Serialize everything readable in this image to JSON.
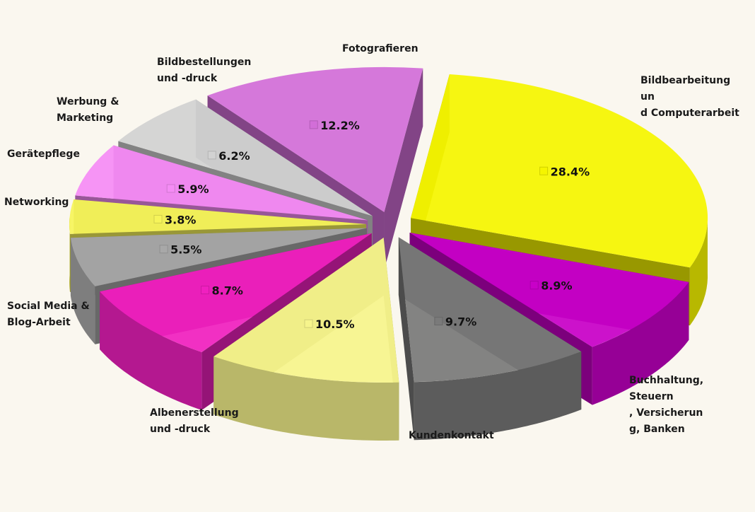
{
  "chart_data": {
    "type": "pie",
    "title": "",
    "slices": [
      {
        "label": "Bildbearbeitung und Computerarbeit",
        "value": 28.4,
        "value_label": "28.4%",
        "color": "#f5f500"
      },
      {
        "label": "Buchhaltung, Steuern, Versicherung, Banken",
        "value": 8.9,
        "value_label": "8.9%",
        "color": "#c800c8"
      },
      {
        "label": "Kundenkontakt",
        "value": 9.7,
        "value_label": "9.7%",
        "color": "#7a7a7a"
      },
      {
        "label": "Albenerstellung und -druck",
        "value": 10.5,
        "value_label": "10.5%",
        "color": "#f6f48c"
      },
      {
        "label": "Social Media & Blog-Arbeit",
        "value": 8.7,
        "value_label": "8.7%",
        "color": "#f020c0"
      },
      {
        "label": "Networking",
        "value": 5.5,
        "value_label": "5.5%",
        "color": "#a8a8a8"
      },
      {
        "label": "Gerätepflege",
        "value": 3.8,
        "value_label": "3.8%",
        "color": "#f6f45a"
      },
      {
        "label": "Werbung & Marketing",
        "value": 5.9,
        "value_label": "5.9%",
        "color": "#f58cf5"
      },
      {
        "label": "Bildbestellungen und -druck",
        "value": 6.2,
        "value_label": "6.2%",
        "color": "#d2d2d2"
      },
      {
        "label": "Fotografieren",
        "value": 12.2,
        "value_label": "12.2%",
        "color": "#d26ed8"
      }
    ],
    "exploded": true,
    "three_d": true,
    "legend": "none"
  }
}
